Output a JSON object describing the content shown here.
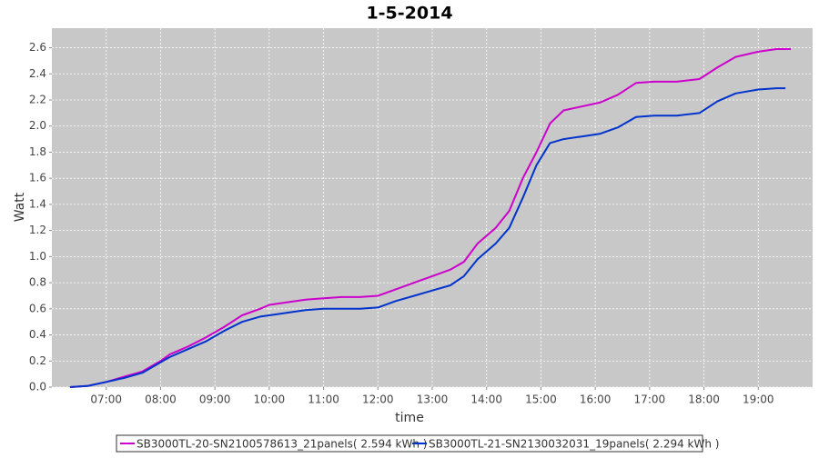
{
  "chart_data": {
    "type": "line",
    "title": "1-5-2014",
    "xlabel": "time",
    "ylabel": "Watt",
    "x": [
      "06:20",
      "06:40",
      "07:00",
      "07:20",
      "07:40",
      "08:00",
      "08:10",
      "08:30",
      "08:50",
      "09:10",
      "09:30",
      "09:50",
      "10:00",
      "10:20",
      "10:40",
      "11:00",
      "11:20",
      "11:40",
      "12:00",
      "12:20",
      "12:40",
      "13:00",
      "13:20",
      "13:35",
      "13:50",
      "14:10",
      "14:25",
      "14:40",
      "14:55",
      "15:10",
      "15:25",
      "15:45",
      "16:05",
      "16:25",
      "16:45",
      "17:05",
      "17:30",
      "17:55",
      "18:15",
      "18:35",
      "19:00",
      "19:20",
      "19:30",
      "19:36"
    ],
    "series": [
      {
        "name": "SB3000TL-20-SN2100578613_21panels( 2.594 kWh )",
        "color": "#cc00cc",
        "values": [
          0.0,
          0.01,
          0.04,
          0.08,
          0.12,
          0.2,
          0.25,
          0.31,
          0.38,
          0.46,
          0.55,
          0.6,
          0.63,
          0.65,
          0.67,
          0.68,
          0.69,
          0.69,
          0.7,
          0.75,
          0.8,
          0.85,
          0.9,
          0.96,
          1.1,
          1.22,
          1.35,
          1.6,
          1.8,
          2.02,
          2.12,
          2.15,
          2.18,
          2.24,
          2.33,
          2.34,
          2.34,
          2.36,
          2.45,
          2.53,
          2.57,
          2.59,
          2.59,
          2.59
        ]
      },
      {
        "name": "SB3000TL-21-SN2130032031_19panels( 2.294 kWh )",
        "color": "#0033cc",
        "values": [
          0.0,
          0.01,
          0.04,
          0.07,
          0.11,
          0.19,
          0.23,
          0.29,
          0.35,
          0.43,
          0.5,
          0.54,
          0.55,
          0.57,
          0.59,
          0.6,
          0.6,
          0.6,
          0.61,
          0.66,
          0.7,
          0.74,
          0.78,
          0.85,
          0.98,
          1.1,
          1.22,
          1.45,
          1.7,
          1.87,
          1.9,
          1.92,
          1.94,
          1.99,
          2.07,
          2.08,
          2.08,
          2.1,
          2.19,
          2.25,
          2.28,
          2.29,
          2.29,
          null
        ]
      }
    ],
    "xlim": [
      "06:00",
      "20:00"
    ],
    "xticks": [
      "07:00",
      "08:00",
      "09:00",
      "10:00",
      "11:00",
      "12:00",
      "13:00",
      "14:00",
      "15:00",
      "16:00",
      "17:00",
      "18:00",
      "19:00"
    ],
    "ylim": [
      0,
      2.75
    ],
    "yticks": [
      {
        "value": 0,
        "label": "0.0"
      },
      0.2,
      0.4,
      0.6,
      0.8,
      {
        "value": 1,
        "label": "1.0"
      },
      1.2,
      1.4,
      1.6,
      1.8,
      {
        "value": 2,
        "label": "2.0"
      },
      2.2,
      2.4,
      2.6
    ],
    "grid": true
  }
}
